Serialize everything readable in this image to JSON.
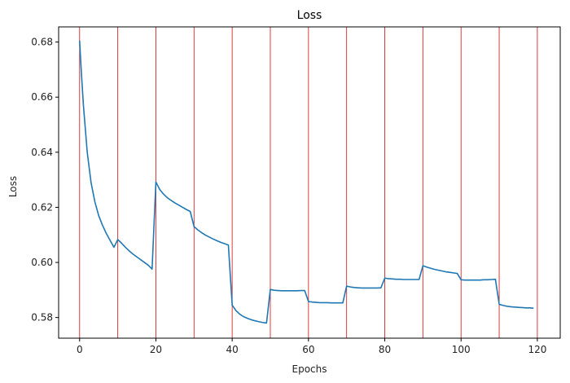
{
  "chart_data": {
    "type": "line",
    "title": "Loss",
    "xlabel": "Epochs",
    "ylabel": "Loss",
    "xlim": [
      -5.5,
      126
    ],
    "ylim": [
      0.5725,
      0.6855
    ],
    "xticks": [
      0,
      20,
      40,
      60,
      80,
      100,
      120
    ],
    "yticks": [
      0.58,
      0.6,
      0.62,
      0.64,
      0.66,
      0.68
    ],
    "ytick_labels": [
      "0.58",
      "0.60",
      "0.62",
      "0.64",
      "0.66",
      "0.68"
    ],
    "grid": false,
    "vlines": [
      0,
      10,
      20,
      30,
      40,
      50,
      60,
      70,
      80,
      90,
      100,
      110,
      120
    ],
    "vline_color": "#d62728",
    "series": [
      {
        "color": "#1f77b4",
        "x": [
          0,
          0.5,
          1,
          2,
          3,
          4,
          5,
          6,
          7,
          8,
          9,
          10,
          11,
          12,
          13,
          14,
          15,
          16,
          17,
          18,
          19,
          20,
          21,
          22,
          23,
          24,
          25,
          26,
          27,
          28,
          29,
          30,
          31,
          32,
          33,
          34,
          35,
          36,
          37,
          38,
          39,
          40,
          41,
          42,
          43,
          44,
          45,
          46,
          47,
          48,
          49,
          50,
          51,
          52,
          53,
          54,
          55,
          56,
          57,
          58,
          59,
          60,
          61,
          62,
          63,
          64,
          65,
          66,
          67,
          68,
          69,
          70,
          71,
          72,
          73,
          74,
          75,
          76,
          77,
          78,
          79,
          80,
          81,
          82,
          83,
          84,
          85,
          86,
          87,
          88,
          89,
          90,
          91,
          92,
          93,
          94,
          95,
          96,
          97,
          98,
          99,
          100,
          101,
          102,
          103,
          104,
          105,
          106,
          107,
          108,
          109,
          110,
          111,
          112,
          113,
          114,
          115,
          116,
          117,
          118,
          119
        ],
        "values": [
          0.6805,
          0.668,
          0.657,
          0.64,
          0.629,
          0.622,
          0.617,
          0.6135,
          0.6105,
          0.608,
          0.6055,
          0.6083,
          0.607,
          0.6055,
          0.6042,
          0.603,
          0.602,
          0.601,
          0.6,
          0.599,
          0.5976,
          0.6292,
          0.6265,
          0.6248,
          0.6235,
          0.6225,
          0.6216,
          0.6208,
          0.62,
          0.6192,
          0.6185,
          0.613,
          0.6118,
          0.6108,
          0.6099,
          0.6092,
          0.6085,
          0.6079,
          0.6073,
          0.6068,
          0.6063,
          0.5845,
          0.5825,
          0.5812,
          0.5803,
          0.5797,
          0.5792,
          0.5788,
          0.5785,
          0.5782,
          0.578,
          0.5902,
          0.5899,
          0.5898,
          0.5897,
          0.5897,
          0.5897,
          0.5897,
          0.5897,
          0.5898,
          0.5898,
          0.5858,
          0.5856,
          0.5855,
          0.5854,
          0.5854,
          0.5854,
          0.5853,
          0.5853,
          0.5853,
          0.5853,
          0.5914,
          0.5911,
          0.5909,
          0.5908,
          0.5907,
          0.5907,
          0.5907,
          0.5907,
          0.5907,
          0.5908,
          0.5943,
          0.5941,
          0.594,
          0.5939,
          0.5939,
          0.5938,
          0.5938,
          0.5938,
          0.5938,
          0.5938,
          0.5988,
          0.5983,
          0.5979,
          0.5975,
          0.5972,
          0.5969,
          0.5966,
          0.5964,
          0.5962,
          0.596,
          0.5937,
          0.5936,
          0.5936,
          0.5936,
          0.5936,
          0.5936,
          0.5937,
          0.5937,
          0.5938,
          0.5939,
          0.5848,
          0.5844,
          0.5841,
          0.5839,
          0.5838,
          0.5837,
          0.5836,
          0.5835,
          0.5835,
          0.5834
        ]
      }
    ]
  }
}
